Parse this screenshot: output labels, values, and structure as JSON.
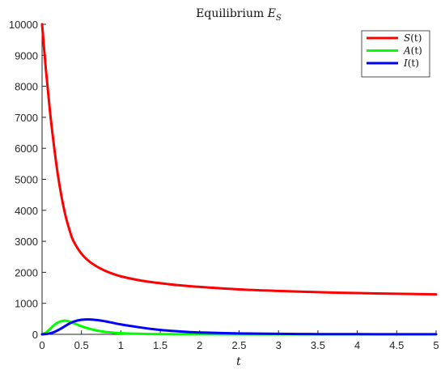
{
  "chart_data": {
    "type": "line",
    "title": "Equilibrium E_S",
    "title_main": "Equilibrium ",
    "title_symbol": "E",
    "title_subscript": "S",
    "xlabel": "t",
    "ylabel": "",
    "xlim": [
      0,
      5
    ],
    "ylim": [
      0,
      10000
    ],
    "x_ticks": [
      "0",
      "0.5",
      "1",
      "1.5",
      "2",
      "2.5",
      "3",
      "3.5",
      "4",
      "4.5",
      "5"
    ],
    "y_ticks": [
      "0",
      "1000",
      "2000",
      "3000",
      "4000",
      "5000",
      "6000",
      "7000",
      "8000",
      "9000",
      "10000"
    ],
    "grid": false,
    "legend_position": "top-right",
    "series": [
      {
        "name": "S(t)",
        "color": "#ff0000",
        "x": [
          0,
          0.05,
          0.1,
          0.15,
          0.2,
          0.25,
          0.3,
          0.35,
          0.4,
          0.5,
          0.6,
          0.7,
          0.8,
          0.9,
          1.0,
          1.2,
          1.4,
          1.6,
          1.8,
          2.0,
          2.5,
          3.0,
          3.5,
          4.0,
          4.5,
          5.0
        ],
        "values": [
          10000,
          8500,
          7200,
          6100,
          5150,
          4400,
          3800,
          3350,
          3000,
          2600,
          2350,
          2180,
          2050,
          1950,
          1870,
          1760,
          1680,
          1620,
          1570,
          1530,
          1450,
          1400,
          1360,
          1330,
          1310,
          1290
        ]
      },
      {
        "name": "A(t)",
        "color": "#00ff00",
        "x": [
          0,
          0.05,
          0.1,
          0.15,
          0.2,
          0.25,
          0.3,
          0.35,
          0.4,
          0.5,
          0.6,
          0.7,
          0.8,
          0.9,
          1.0,
          1.2,
          1.4,
          1.6,
          1.8,
          2.0,
          2.5,
          3.0,
          3.5,
          4.0,
          4.5,
          5.0
        ],
        "values": [
          0,
          60,
          170,
          290,
          380,
          430,
          440,
          410,
          360,
          260,
          180,
          120,
          80,
          55,
          35,
          18,
          10,
          6,
          4,
          2,
          1,
          0,
          0,
          0,
          0,
          0
        ]
      },
      {
        "name": "I(t)",
        "color": "#0000ff",
        "x": [
          0,
          0.05,
          0.1,
          0.15,
          0.2,
          0.25,
          0.3,
          0.35,
          0.4,
          0.5,
          0.6,
          0.7,
          0.8,
          0.9,
          1.0,
          1.2,
          1.4,
          1.6,
          1.8,
          2.0,
          2.5,
          3.0,
          3.5,
          4.0,
          4.5,
          5.0
        ],
        "values": [
          0,
          10,
          30,
          70,
          130,
          200,
          280,
          350,
          410,
          470,
          480,
          460,
          420,
          370,
          320,
          240,
          170,
          120,
          85,
          60,
          30,
          15,
          8,
          5,
          3,
          2
        ]
      }
    ],
    "legend_entries": [
      {
        "prefix": "S",
        "suffix": "(t)",
        "color": "#ff0000"
      },
      {
        "prefix": "A",
        "suffix": "(t)",
        "color": "#00ff00"
      },
      {
        "prefix": "I",
        "suffix": "(t)",
        "color": "#0000ff"
      }
    ]
  }
}
